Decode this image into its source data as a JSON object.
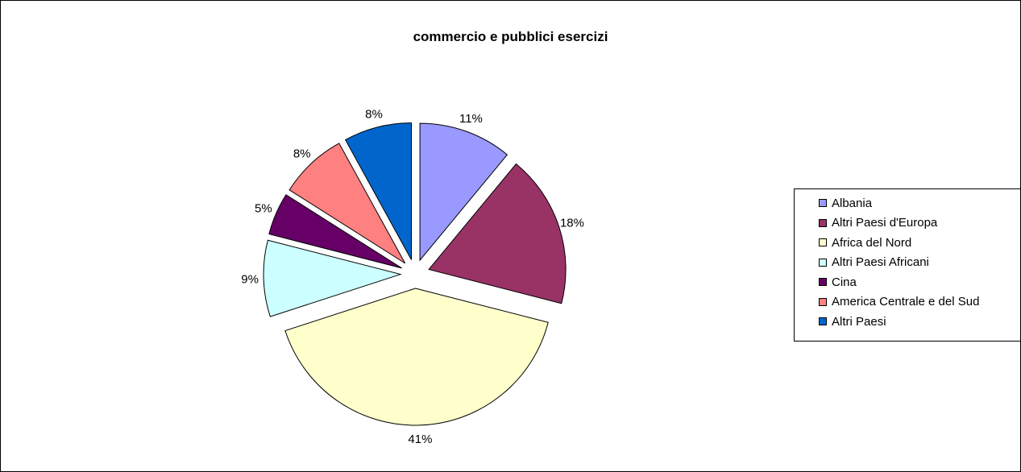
{
  "chart_data": {
    "type": "pie",
    "title": "commercio e pubblici esercizi",
    "categories": [
      "Albania",
      "Altri Paesi d'Europa",
      "Africa del Nord",
      "Altri Paesi Africani",
      "Cina",
      "America Centrale e del Sud",
      "Altri Paesi"
    ],
    "values": [
      11,
      18,
      41,
      9,
      5,
      8,
      8
    ],
    "labels": [
      "11%",
      "18%",
      "41%",
      "9%",
      "5%",
      "8%",
      "8%"
    ],
    "colors": [
      "#9999ff",
      "#993366",
      "#ffffcc",
      "#ccffff",
      "#660066",
      "#ff8080",
      "#0066cc"
    ],
    "exploded": true,
    "legend_position": "right"
  }
}
